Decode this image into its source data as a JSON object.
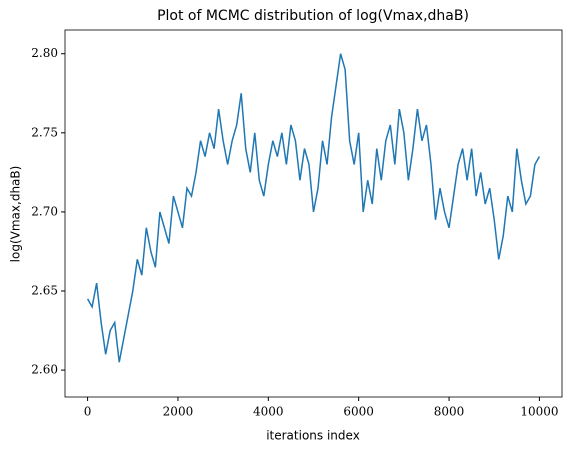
{
  "chart_data": {
    "type": "line",
    "title": "Plot of MCMC distribution of log(Vmax,dhaB)",
    "x_label": "iterations index",
    "y_label": "log(Vmax,dhaB)",
    "x": [
      0,
      100,
      200,
      300,
      400,
      500,
      600,
      700,
      800,
      900,
      1000,
      1100,
      1200,
      1300,
      1400,
      1500,
      1600,
      1700,
      1800,
      1900,
      2000,
      2100,
      2200,
      2300,
      2400,
      2500,
      2600,
      2700,
      2800,
      2900,
      3000,
      3100,
      3200,
      3300,
      3400,
      3500,
      3600,
      3700,
      3800,
      3900,
      4000,
      4100,
      4200,
      4300,
      4400,
      4500,
      4600,
      4700,
      4800,
      4900,
      5000,
      5100,
      5200,
      5300,
      5400,
      5500,
      5600,
      5700,
      5800,
      5900,
      6000,
      6100,
      6200,
      6300,
      6400,
      6500,
      6600,
      6700,
      6800,
      6900,
      7000,
      7100,
      7200,
      7300,
      7400,
      7500,
      7600,
      7700,
      7800,
      7900,
      8000,
      8100,
      8200,
      8300,
      8400,
      8500,
      8600,
      8700,
      8800,
      8900,
      9000,
      9100,
      9200,
      9300,
      9400,
      9500,
      9600,
      9700,
      9800,
      9900,
      10000
    ],
    "series": [
      {
        "color": "#1f77b4",
        "values": [
          2.645,
          2.64,
          2.655,
          2.63,
          2.61,
          2.625,
          2.63,
          2.605,
          2.62,
          2.635,
          2.65,
          2.67,
          2.66,
          2.69,
          2.675,
          2.665,
          2.7,
          2.69,
          2.68,
          2.71,
          2.7,
          2.69,
          2.715,
          2.71,
          2.725,
          2.745,
          2.735,
          2.75,
          2.74,
          2.765,
          2.745,
          2.73,
          2.745,
          2.755,
          2.775,
          2.74,
          2.725,
          2.75,
          2.72,
          2.71,
          2.73,
          2.745,
          2.735,
          2.75,
          2.73,
          2.755,
          2.745,
          2.72,
          2.74,
          2.73,
          2.7,
          2.715,
          2.745,
          2.73,
          2.76,
          2.78,
          2.8,
          2.79,
          2.745,
          2.73,
          2.75,
          2.7,
          2.72,
          2.705,
          2.74,
          2.72,
          2.745,
          2.755,
          2.73,
          2.765,
          2.75,
          2.72,
          2.74,
          2.765,
          2.745,
          2.755,
          2.73,
          2.695,
          2.715,
          2.7,
          2.69,
          2.71,
          2.73,
          2.74,
          2.72,
          2.74,
          2.71,
          2.725,
          2.705,
          2.715,
          2.695,
          2.67,
          2.685,
          2.71,
          2.7,
          2.74,
          2.72,
          2.705,
          2.71,
          2.73,
          2.735
        ]
      }
    ],
    "xlim": [
      -500,
      10500
    ],
    "xticks": [
      0,
      2000,
      4000,
      6000,
      8000,
      10000
    ],
    "ylim": [
      2.583,
      2.815
    ],
    "yticks": [
      {
        "value": 2.6,
        "label": "2.60"
      },
      {
        "value": 2.65,
        "label": "2.65"
      },
      {
        "value": 2.7,
        "label": "2.70"
      },
      {
        "value": 2.75,
        "label": "2.75"
      },
      {
        "value": 2.8,
        "label": "2.80"
      }
    ],
    "grid": false
  }
}
